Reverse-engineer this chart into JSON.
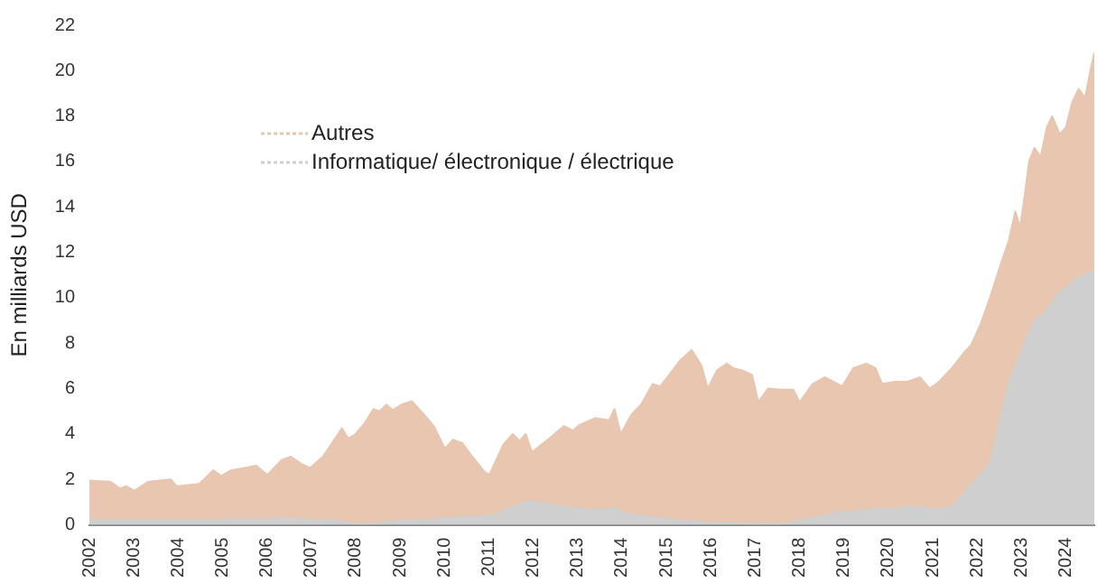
{
  "chart_data": {
    "type": "area",
    "stacked": true,
    "ylabel": "En milliards USD",
    "x": [
      2002.0,
      2002.47,
      2002.69,
      2002.83,
      2003.01,
      2003.33,
      2003.83,
      2003.97,
      2004.47,
      2004.79,
      2004.97,
      2005.19,
      2005.76,
      2006.01,
      2006.33,
      2006.54,
      2006.76,
      2006.97,
      2007.26,
      2007.69,
      2007.83,
      2007.97,
      2008.19,
      2008.4,
      2008.54,
      2008.69,
      2008.83,
      2009.04,
      2009.26,
      2009.54,
      2009.76,
      2010.01,
      2010.19,
      2010.4,
      2010.61,
      2010.89,
      2011.01,
      2011.33,
      2011.54,
      2011.69,
      2011.83,
      2011.97,
      2012.33,
      2012.69,
      2012.9,
      2013.04,
      2013.4,
      2013.71,
      2013.83,
      2013.97,
      2014.21,
      2014.43,
      2014.69,
      2014.86,
      2015.14,
      2015.29,
      2015.57,
      2015.79,
      2015.93,
      2016.14,
      2016.36,
      2016.5,
      2016.71,
      2016.93,
      2017.07,
      2017.29,
      2017.57,
      2017.86,
      2018.0,
      2018.29,
      2018.57,
      2018.96,
      2019.21,
      2019.5,
      2019.71,
      2019.86,
      2020.14,
      2020.43,
      2020.71,
      2020.93,
      2021.14,
      2021.43,
      2021.71,
      2021.86,
      2022.07,
      2022.29,
      2022.5,
      2022.71,
      2022.86,
      2022.97,
      2023.07,
      2023.17,
      2023.29,
      2023.43,
      2023.57,
      2023.69,
      2023.86,
      2024.0,
      2024.14,
      2024.29,
      2024.43,
      2024.54,
      2024.64
    ],
    "series": [
      {
        "name": "Informatique/ électronique / électrique",
        "color": "#cfcfcf",
        "values": [
          0.2,
          0.2,
          0.2,
          0.2,
          0.2,
          0.2,
          0.2,
          0.2,
          0.2,
          0.2,
          0.2,
          0.25,
          0.25,
          0.25,
          0.3,
          0.3,
          0.25,
          0.2,
          0.2,
          0.15,
          0.1,
          0.05,
          0.05,
          0.05,
          0.1,
          0.15,
          0.15,
          0.2,
          0.2,
          0.2,
          0.25,
          0.3,
          0.3,
          0.35,
          0.35,
          0.4,
          0.4,
          0.6,
          0.8,
          0.9,
          1.0,
          1.05,
          0.9,
          0.8,
          0.75,
          0.7,
          0.65,
          0.7,
          0.75,
          0.6,
          0.45,
          0.4,
          0.35,
          0.3,
          0.25,
          0.2,
          0.15,
          0.15,
          0.1,
          0.1,
          0.1,
          0.1,
          0.05,
          0.05,
          0.05,
          0.05,
          0.05,
          0.1,
          0.2,
          0.3,
          0.4,
          0.6,
          0.6,
          0.65,
          0.7,
          0.7,
          0.7,
          0.8,
          0.8,
          0.7,
          0.7,
          0.8,
          1.4,
          1.8,
          2.2,
          2.7,
          4.5,
          6.2,
          7.0,
          7.5,
          8.0,
          8.5,
          9.0,
          9.2,
          9.5,
          9.8,
          10.3,
          10.4,
          10.7,
          10.9,
          11.0,
          11.1,
          11.2
        ]
      },
      {
        "name": "Autres",
        "color": "#e8c6b0",
        "values": [
          1.75,
          1.7,
          1.4,
          1.5,
          1.3,
          1.7,
          1.8,
          1.5,
          1.6,
          2.2,
          1.95,
          2.15,
          2.35,
          1.95,
          2.55,
          2.7,
          2.45,
          2.3,
          2.8,
          4.1,
          3.7,
          3.9,
          4.4,
          5.05,
          4.9,
          5.15,
          4.9,
          5.1,
          5.25,
          4.65,
          4.1,
          3.05,
          3.45,
          3.25,
          2.7,
          1.95,
          1.8,
          2.95,
          3.2,
          2.8,
          3.0,
          2.15,
          2.85,
          3.55,
          3.4,
          3.7,
          4.05,
          3.9,
          4.35,
          3.4,
          4.4,
          4.9,
          5.85,
          5.8,
          6.55,
          7.0,
          7.55,
          6.85,
          5.9,
          6.7,
          7.0,
          6.8,
          6.75,
          6.55,
          5.35,
          5.95,
          5.9,
          5.85,
          5.2,
          5.9,
          6.1,
          5.5,
          6.3,
          6.45,
          6.2,
          5.5,
          5.6,
          5.5,
          5.7,
          5.3,
          5.6,
          6.1,
          6.2,
          6.1,
          6.6,
          7.3,
          6.8,
          6.3,
          6.8,
          5.6,
          6.5,
          7.5,
          7.6,
          7.0,
          8.0,
          8.2,
          6.9,
          7.1,
          7.9,
          8.3,
          7.8,
          8.8,
          9.6
        ]
      }
    ],
    "xlim": [
      2002,
      2024.64
    ],
    "xticks": [
      2002,
      2003,
      2004,
      2005,
      2006,
      2007,
      2008,
      2009,
      2010,
      2011,
      2012,
      2013,
      2014,
      2015,
      2016,
      2017,
      2018,
      2019,
      2020,
      2021,
      2022,
      2023,
      2024
    ],
    "ylim": [
      0,
      22
    ],
    "yticks": [
      0,
      2,
      4,
      6,
      8,
      10,
      12,
      14,
      16,
      18,
      20,
      22
    ],
    "legend": "top left"
  }
}
